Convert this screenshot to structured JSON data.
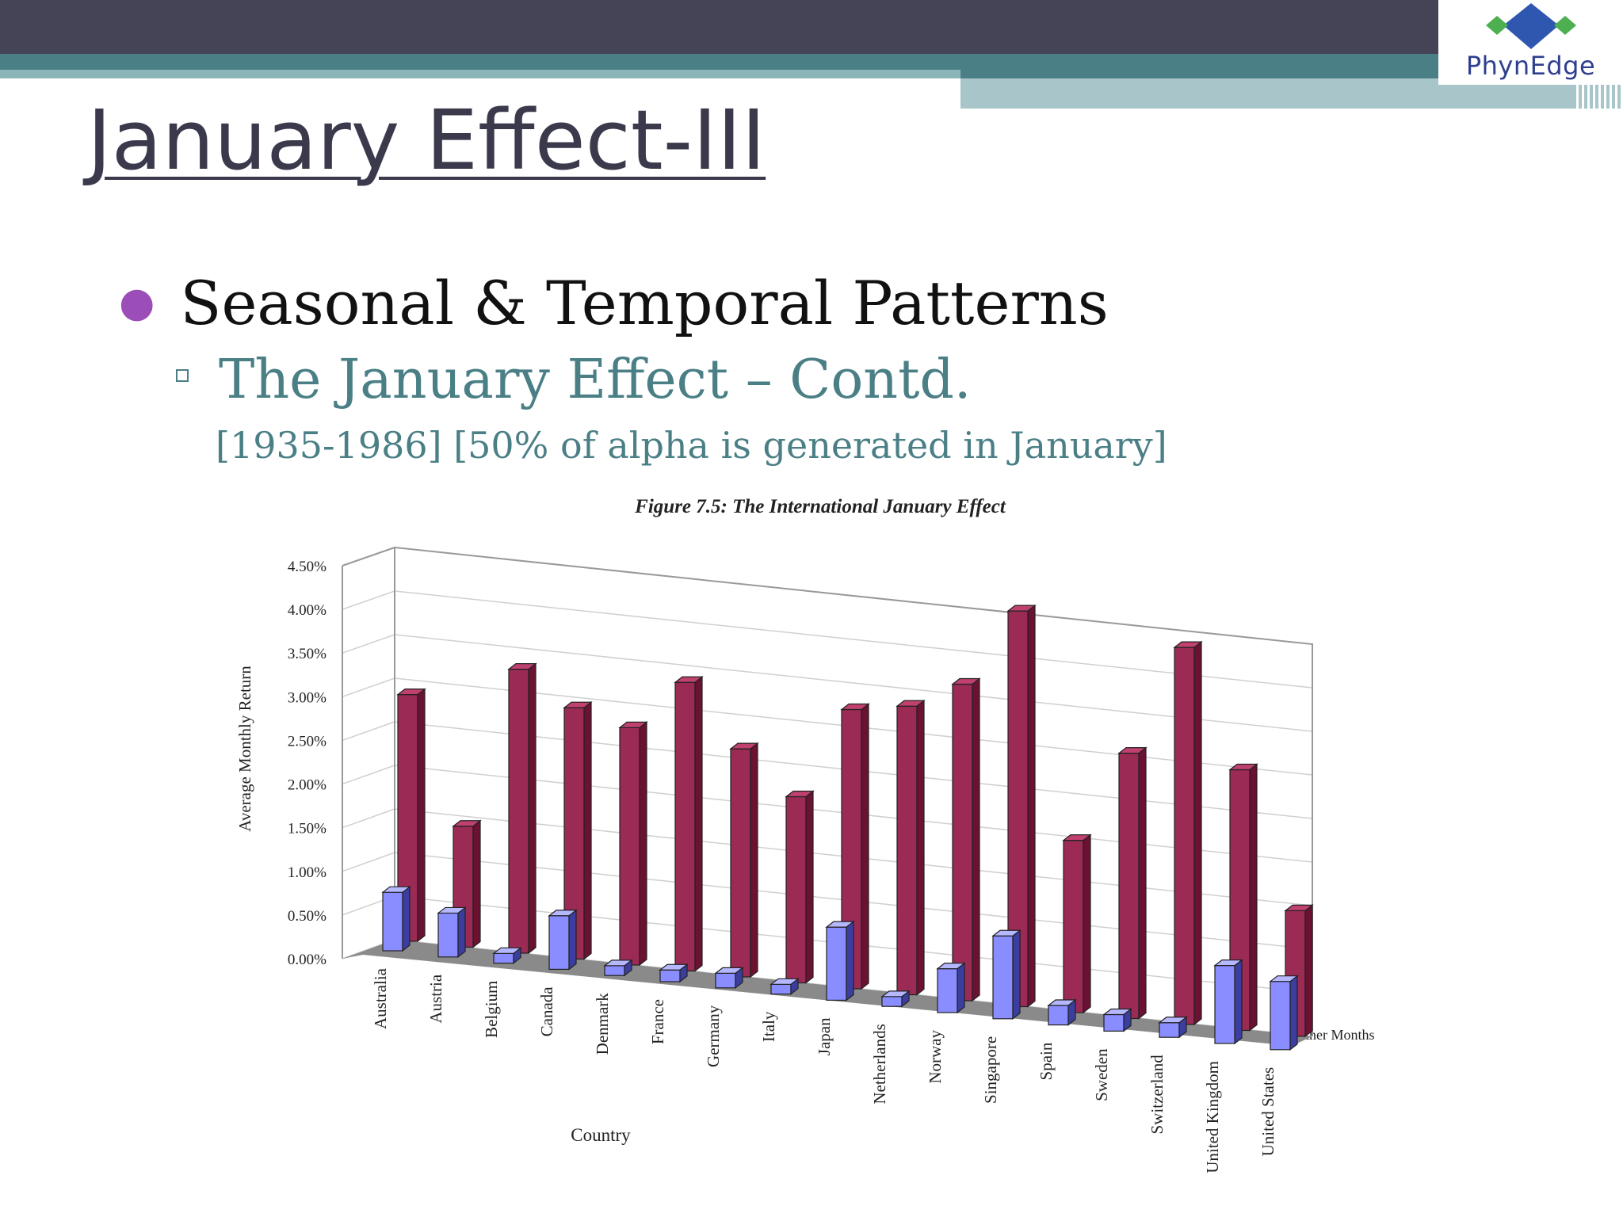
{
  "slide": {
    "title": "January Effect-III",
    "bullet": "Seasonal & Temporal Patterns",
    "sub_bullet": "The January Effect – Contd.",
    "sub_text": "[1935-1986] [50% of alpha is generated in January]"
  },
  "logo": {
    "text": "PhynEdge"
  },
  "colors": {
    "header_dark": "#444456",
    "teal": "#4a7f85",
    "bullet_purple": "#9b4db8",
    "january_bar": "#9b2a55",
    "other_bar": "#8a8dff"
  },
  "chart_data": {
    "type": "bar",
    "title": "Figure 7.5: The International January Effect",
    "xlabel": "Country",
    "ylabel": "Average Monthly Return",
    "ylim": [
      0,
      4.5
    ],
    "yticks": [
      "0.00%",
      "0.50%",
      "1.00%",
      "1.50%",
      "2.00%",
      "2.50%",
      "3.00%",
      "3.50%",
      "4.00%",
      "4.50%"
    ],
    "categories": [
      "Australia",
      "Austria",
      "Belgium",
      "Canada",
      "Denmark",
      "France",
      "Germany",
      "Italy",
      "Japan",
      "Netherlands",
      "Norway",
      "Singapore",
      "Spain",
      "Sweden",
      "Switzerland",
      "United Kingdom",
      "United States"
    ],
    "series": [
      {
        "values": [
          2.65,
          1.3,
          3.05,
          2.7,
          2.55,
          3.1,
          2.45,
          2.0,
          3.0,
          3.1,
          3.4,
          4.25,
          1.85,
          2.85,
          4.05,
          2.8,
          1.35
        ]
      },
      {
        "name": "Other Months",
        "values": [
          0.6,
          0.45,
          0.1,
          0.55,
          0.1,
          0.12,
          0.15,
          0.1,
          0.75,
          0.1,
          0.45,
          0.85,
          0.2,
          0.17,
          0.15,
          0.8,
          0.7
        ]
      }
    ],
    "legend_position": "right"
  }
}
